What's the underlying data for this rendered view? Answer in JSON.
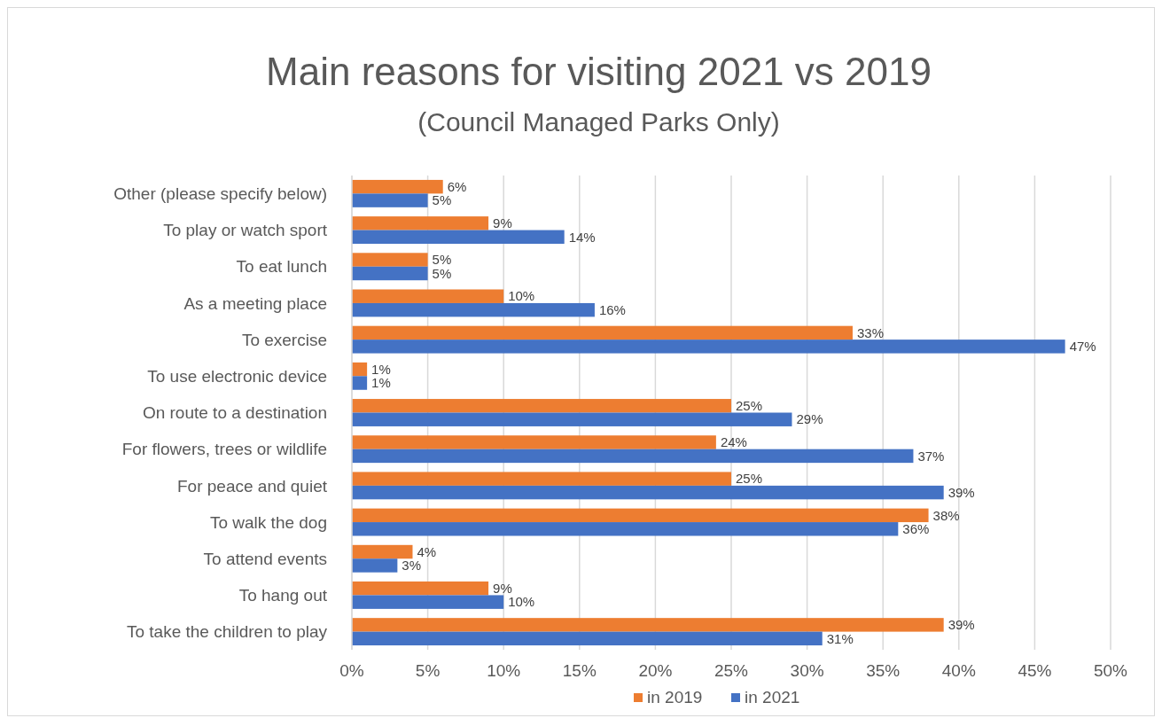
{
  "chart_data": {
    "type": "bar",
    "orientation": "horizontal",
    "title": "Main reasons for visiting 2021 vs 2019",
    "subtitle": "(Council Managed Parks Only)",
    "categories": [
      "Other (please specify below)",
      "To play or watch sport",
      "To eat lunch",
      "As a meeting place",
      "To exercise",
      "To use electronic device",
      "On route to a destination",
      "For flowers, trees or wildlife",
      "For peace and quiet",
      "To walk the dog",
      "To attend events",
      "To hang out",
      "To take the children to play"
    ],
    "series": [
      {
        "name": "in 2019",
        "color": "#ed7d31",
        "values": [
          6,
          9,
          5,
          10,
          33,
          1,
          25,
          24,
          25,
          38,
          4,
          9,
          39
        ],
        "value_labels": [
          "6%",
          "9%",
          "5%",
          "10%",
          "33%",
          "1%",
          "25%",
          "24%",
          "25%",
          "38%",
          "4%",
          "9%",
          "39%"
        ]
      },
      {
        "name": "in 2021",
        "color": "#4472c4",
        "values": [
          5,
          14,
          5,
          16,
          47,
          1,
          29,
          37,
          39,
          36,
          3,
          10,
          31
        ],
        "value_labels": [
          "5%",
          "14%",
          "5%",
          "16%",
          "47%",
          "1%",
          "29%",
          "37%",
          "39%",
          "36%",
          "3%",
          "10%",
          "31%"
        ]
      }
    ],
    "xlim": [
      0,
      50
    ],
    "xticks": [
      {
        "value": 0,
        "label": "0%"
      },
      {
        "value": 5,
        "label": "5%"
      },
      {
        "value": 10,
        "label": "10%"
      },
      {
        "value": 15,
        "label": "15%"
      },
      {
        "value": 20,
        "label": "20%"
      },
      {
        "value": 25,
        "label": "25%"
      },
      {
        "value": 30,
        "label": "30%"
      },
      {
        "value": 35,
        "label": "35%"
      },
      {
        "value": 40,
        "label": "40%"
      },
      {
        "value": 45,
        "label": "45%"
      },
      {
        "value": 50,
        "label": "50%"
      }
    ],
    "grid": "x",
    "legend": "bottom"
  }
}
